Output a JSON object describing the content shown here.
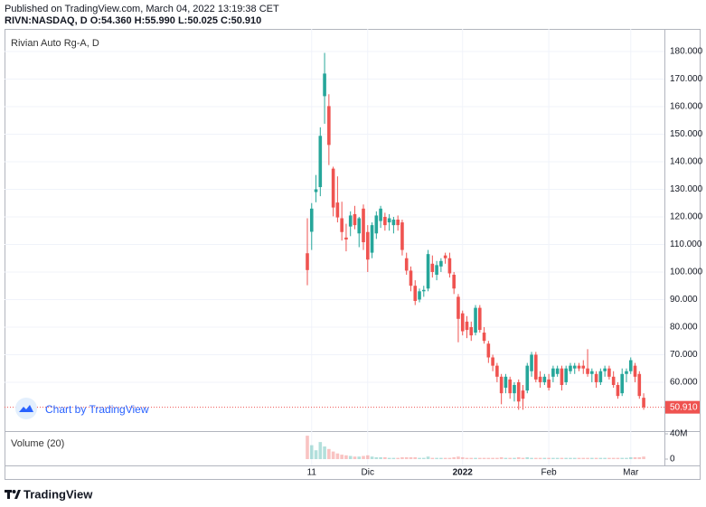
{
  "header": {
    "published": "Published on TradingView.com, March 04, 2022 13:19:38 CET",
    "quote": "RIVN:NASDAQ, D  O:54.360 H:55.990 L:50.025 C:50.910"
  },
  "footer": {
    "brand": "TradingView"
  },
  "chart_data": {
    "type": "candlestick",
    "title": "Rivian Auto Rg-A, D",
    "watermark": "Chart by TradingView",
    "up_color": "#26a69a",
    "down_color": "#ef5350",
    "grid": true,
    "categories": [
      null,
      "11",
      null,
      null,
      null,
      null,
      null,
      null,
      null,
      null,
      null,
      null,
      null,
      null,
      "Dic",
      null,
      null,
      null,
      null,
      null,
      null,
      null,
      null,
      null,
      null,
      null,
      null,
      null,
      null,
      null,
      null,
      null,
      null,
      null,
      null,
      null,
      "2022",
      null,
      null,
      null,
      null,
      null,
      null,
      null,
      null,
      null,
      null,
      null,
      null,
      null,
      null,
      null,
      null,
      null,
      null,
      null,
      "Feb",
      null,
      null,
      null,
      null,
      null,
      null,
      null,
      null,
      null,
      null,
      null,
      null,
      null,
      null,
      null,
      null,
      null,
      null,
      "Mar",
      null,
      null,
      null
    ],
    "open": [
      106.8,
      114.6,
      129,
      130.8,
      163.8,
      160.2,
      137.5,
      125.2,
      119.5,
      112.5,
      116.5,
      121,
      114,
      123,
      114.5,
      107,
      114,
      118.5,
      120,
      118,
      117,
      119,
      118,
      105,
      100.5,
      95,
      90,
      93,
      94,
      103,
      99,
      102,
      106,
      105,
      99,
      91,
      85,
      82,
      80,
      78,
      87,
      78,
      74,
      69,
      66,
      62,
      58,
      61,
      56,
      60,
      57,
      57,
      64,
      70,
      62,
      60,
      61,
      62,
      63,
      65,
      60,
      64,
      65,
      66,
      66,
      65,
      63,
      63,
      60,
      64,
      65,
      62,
      59,
      56,
      63,
      64,
      66,
      63,
      54.36
    ],
    "high": [
      119.5,
      125,
      135.2,
      152.5,
      179.5,
      164.5,
      138.2,
      134.7,
      125.5,
      117.5,
      122,
      124,
      120,
      124.5,
      117,
      118,
      122,
      124,
      121.5,
      121,
      120,
      120.5,
      119,
      107,
      102,
      97,
      94,
      95,
      108,
      106,
      104,
      105,
      107,
      107,
      100,
      92,
      86,
      84,
      82,
      88,
      88,
      80,
      75,
      70,
      67,
      63,
      63,
      62,
      60,
      61,
      59,
      67,
      71,
      71,
      64,
      63,
      63,
      66,
      66,
      66,
      66,
      67,
      67,
      67,
      68,
      72,
      65,
      64,
      65,
      66,
      66,
      64,
      60,
      65,
      65,
      69,
      67,
      64,
      55.99
    ],
    "low": [
      95.2,
      108,
      125.3,
      127.5,
      153.8,
      138.8,
      120.2,
      118,
      111.4,
      107.5,
      113,
      115.5,
      109,
      108,
      100,
      105,
      112,
      116,
      115,
      115,
      114,
      115,
      106,
      99,
      93,
      88,
      89,
      91,
      93,
      98,
      97,
      100,
      103,
      98,
      92,
      74.5,
      77,
      76,
      75,
      77,
      78,
      74,
      67,
      64,
      60,
      52,
      56,
      54,
      53,
      50,
      50,
      56,
      62,
      60,
      58,
      59,
      57,
      60,
      62,
      57,
      59,
      63,
      63,
      64,
      63,
      62,
      60,
      58,
      59,
      62,
      61,
      58,
      54,
      55,
      60,
      63,
      60,
      54,
      50.025
    ],
    "close": [
      100.7,
      123,
      130,
      149.4,
      172,
      146.1,
      123.4,
      119.8,
      114.5,
      111.8,
      120.5,
      117,
      119.5,
      110.8,
      104.5,
      117,
      120.5,
      123,
      117,
      119.5,
      119,
      117,
      108,
      100.5,
      95,
      89.5,
      93,
      93.5,
      106.5,
      100,
      102.5,
      104,
      105,
      99.5,
      94,
      83,
      78.5,
      79,
      77,
      87,
      79,
      75,
      69,
      66,
      62,
      56,
      62,
      56,
      59,
      53,
      54,
      66,
      70,
      61,
      60,
      62,
      58,
      65,
      65,
      59,
      65,
      66,
      66,
      65,
      65,
      63,
      64,
      60,
      64,
      65,
      62,
      59,
      55,
      63,
      64,
      68,
      62,
      55,
      50.91
    ],
    "ylim": [
      42.6,
      188.2
    ],
    "yticks": [
      {
        "value": 60,
        "label": "60.000"
      },
      {
        "value": 70,
        "label": "70.000"
      },
      {
        "value": 80,
        "label": "80.000"
      },
      {
        "value": 90,
        "label": "90.000"
      },
      {
        "value": 100,
        "label": "100.000"
      },
      {
        "value": 110,
        "label": "110.000"
      },
      {
        "value": 120,
        "label": "120.000"
      },
      {
        "value": 130,
        "label": "130.000"
      },
      {
        "value": 140,
        "label": "140.000"
      },
      {
        "value": 150,
        "label": "150.000"
      },
      {
        "value": 160,
        "label": "160.000"
      },
      {
        "value": 170,
        "label": "170.000"
      },
      {
        "value": 180,
        "label": "180.000"
      }
    ],
    "last_price": {
      "value": 50.91,
      "label": "50.910"
    },
    "volume": {
      "title": "Volume (20)",
      "values": [
        37,
        22,
        14,
        27,
        20,
        16,
        12,
        9,
        7,
        6,
        5,
        4,
        4,
        5,
        6,
        4,
        3,
        3,
        3,
        2,
        2,
        2,
        3,
        3,
        3,
        3,
        2,
        2,
        4,
        2,
        2,
        2,
        2,
        2,
        3,
        4,
        3,
        2,
        2,
        2,
        2,
        2,
        2,
        2,
        2,
        3,
        2,
        2,
        2,
        3,
        2,
        3,
        2,
        2,
        2,
        2,
        2,
        2,
        2,
        2,
        2,
        2,
        2,
        2,
        2,
        2,
        2,
        2,
        2,
        2,
        2,
        2,
        2,
        2,
        2,
        3,
        3,
        3,
        4
      ],
      "ylim": [
        -10,
        42.9
      ],
      "yticks": [
        {
          "value": 40,
          "label": "40M"
        },
        0
      ]
    }
  }
}
